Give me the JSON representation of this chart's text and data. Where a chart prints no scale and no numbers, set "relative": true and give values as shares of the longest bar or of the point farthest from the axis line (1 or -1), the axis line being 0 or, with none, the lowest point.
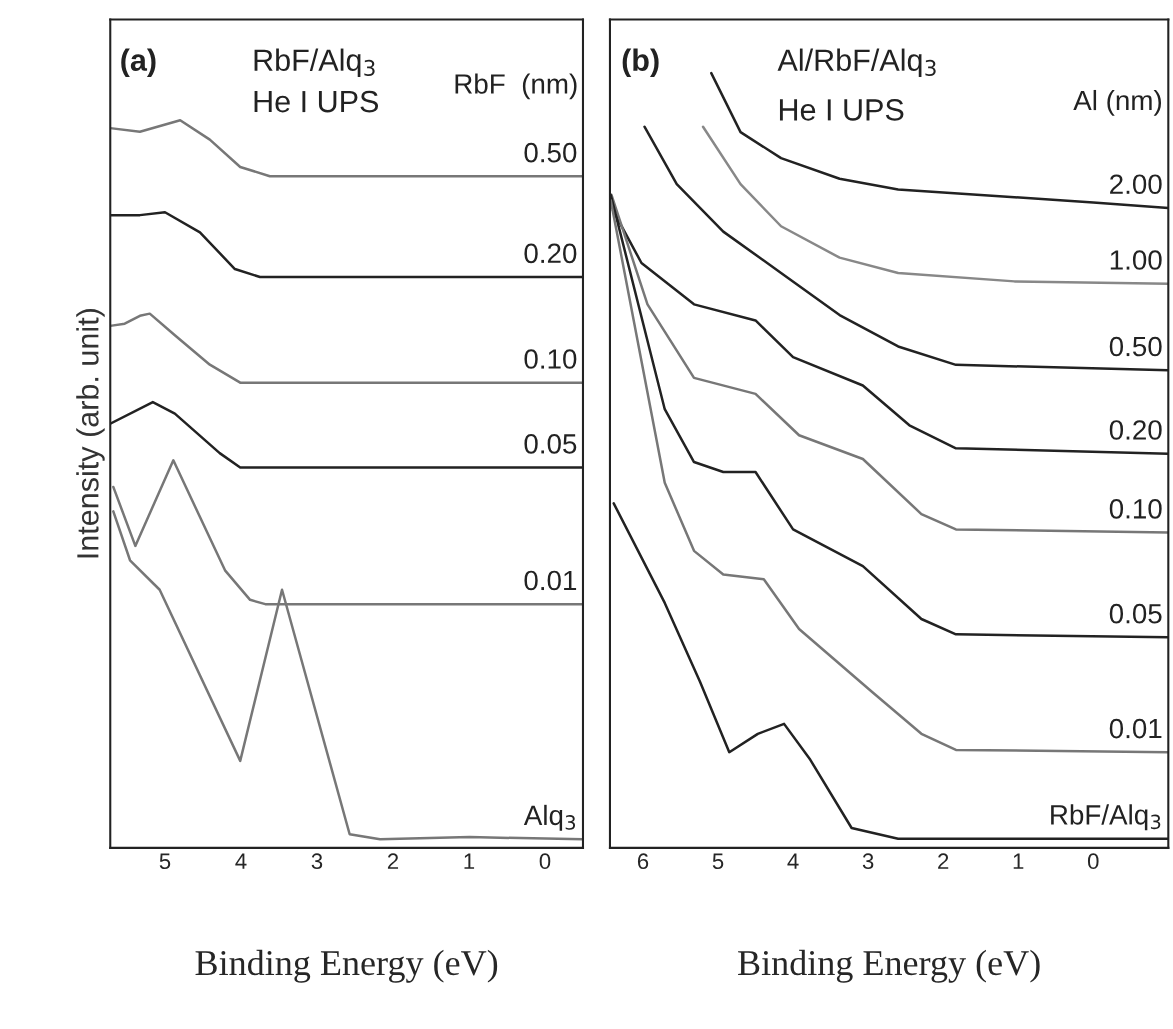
{
  "chart_data": [
    {
      "type": "line",
      "relative": true,
      "xlabel": "Binding Energy (eV)",
      "ylabel": "Intensity (arb. unit)",
      "xlim": [
        5.72,
        -0.5
      ],
      "xticks": [
        5,
        4,
        3,
        2,
        1,
        0
      ],
      "tick_labels": "x",
      "grid": false,
      "legend": false,
      "annotations": [
        "(a)",
        "RbF/Alq$_{3}$",
        "He I UPS",
        "RbF  (nm)"
      ],
      "series": [
        {
          "name": "0.50",
          "color": "#777777",
          "x": [
            5.72,
            5.33,
            4.8,
            4.41,
            4.01,
            3.62,
            -0.5
          ],
          "values": [
            0.989,
            0.984,
            1.0,
            0.973,
            0.935,
            0.922,
            0.922
          ]
        },
        {
          "name": "0.20",
          "color": "#222222",
          "x": [
            5.72,
            5.33,
            5.0,
            4.54,
            4.08,
            3.75,
            -0.5
          ],
          "values": [
            0.868,
            0.868,
            0.872,
            0.844,
            0.793,
            0.782,
            0.782
          ]
        },
        {
          "name": "0.10",
          "color": "#777777",
          "x": [
            5.72,
            5.53,
            5.33,
            5.2,
            4.87,
            4.41,
            4.01,
            -0.5
          ],
          "values": [
            0.714,
            0.717,
            0.728,
            0.731,
            0.701,
            0.66,
            0.635,
            0.635
          ]
        },
        {
          "name": "0.05",
          "color": "#222222",
          "x": [
            5.72,
            5.16,
            4.87,
            4.28,
            4.01,
            -0.5
          ],
          "values": [
            0.578,
            0.608,
            0.592,
            0.537,
            0.517,
            0.517
          ]
        },
        {
          "name": "0.01",
          "color": "#777777",
          "x": [
            5.68,
            5.39,
            4.89,
            4.21,
            3.88,
            3.68,
            -0.5
          ],
          "values": [
            0.49,
            0.408,
            0.527,
            0.374,
            0.333,
            0.327,
            0.327
          ]
        },
        {
          "name": "Alq$_{3}$",
          "color": "#777777",
          "x": [
            5.68,
            5.46,
            5.07,
            4.01,
            3.46,
            2.57,
            2.17,
            0.99,
            -0.5
          ],
          "values": [
            0.456,
            0.388,
            0.347,
            0.109,
            0.347,
            0.007,
            0.0,
            0.003,
            0.0
          ]
        }
      ]
    },
    {
      "type": "line",
      "relative": true,
      "xlabel": "Binding Energy (eV)",
      "xlim": [
        6.44,
        -1.0
      ],
      "xticks": [
        6,
        5,
        4,
        3,
        2,
        1,
        0
      ],
      "tick_labels": "x",
      "grid": false,
      "legend": false,
      "annotations": [
        "(b)",
        "Al/RbF/Alq$_{3}$",
        "He I UPS",
        "Al (nm)"
      ],
      "series": [
        {
          "name": "2.00",
          "color": "#222222",
          "x": [
            5.09,
            4.7,
            4.16,
            3.38,
            2.6,
            1.05,
            0,
            -1.0
          ],
          "values": [
            1.0,
            0.923,
            0.889,
            0.862,
            0.848,
            0.838,
            0.831,
            0.824
          ]
        },
        {
          "name": "1.00",
          "color": "#888888",
          "x": [
            5.2,
            4.7,
            4.16,
            3.38,
            2.6,
            1.05,
            -1.0
          ],
          "values": [
            0.93,
            0.855,
            0.8,
            0.759,
            0.739,
            0.728,
            0.725
          ]
        },
        {
          "name": "0.50",
          "color": "#222222",
          "x": [
            5.98,
            5.55,
            4.93,
            4.16,
            3.38,
            2.6,
            1.83,
            -1.0
          ],
          "values": [
            0.93,
            0.855,
            0.793,
            0.739,
            0.684,
            0.643,
            0.619,
            0.612
          ]
        },
        {
          "name": "0.20",
          "color": "#222222",
          "x": [
            6.4,
            6.02,
            5.32,
            4.5,
            4.0,
            3.07,
            2.45,
            1.83,
            -1.0
          ],
          "values": [
            0.821,
            0.752,
            0.698,
            0.677,
            0.629,
            0.592,
            0.54,
            0.51,
            0.503
          ]
        },
        {
          "name": "0.10",
          "color": "#777777",
          "x": [
            6.42,
            5.94,
            5.32,
            4.5,
            3.92,
            3.07,
            2.29,
            1.83,
            -1.0
          ],
          "values": [
            0.841,
            0.698,
            0.602,
            0.581,
            0.527,
            0.496,
            0.424,
            0.404,
            0.4
          ]
        },
        {
          "name": "0.05",
          "color": "#222222",
          "x": [
            6.43,
            5.71,
            5.32,
            4.93,
            4.5,
            4.0,
            3.07,
            2.29,
            1.83,
            -1.0
          ],
          "values": [
            0.841,
            0.561,
            0.492,
            0.479,
            0.479,
            0.404,
            0.356,
            0.287,
            0.267,
            0.263
          ]
        },
        {
          "name": "0.01",
          "color": "#777777",
          "x": [
            6.43,
            5.71,
            5.32,
            4.93,
            4.39,
            3.92,
            2.95,
            2.29,
            1.83,
            -1.0
          ],
          "values": [
            0.834,
            0.465,
            0.376,
            0.345,
            0.339,
            0.274,
            0.192,
            0.137,
            0.116,
            0.113
          ]
        },
        {
          "name": "RbF/Alq$_{3}$",
          "color": "#222222",
          "x": [
            6.39,
            5.71,
            5.24,
            4.85,
            4.47,
            4.12,
            3.77,
            3.22,
            2.6,
            -1.0
          ],
          "values": [
            0.438,
            0.308,
            0.205,
            0.113,
            0.137,
            0.15,
            0.103,
            0.014,
            0.0,
            0.0
          ]
        }
      ]
    }
  ]
}
